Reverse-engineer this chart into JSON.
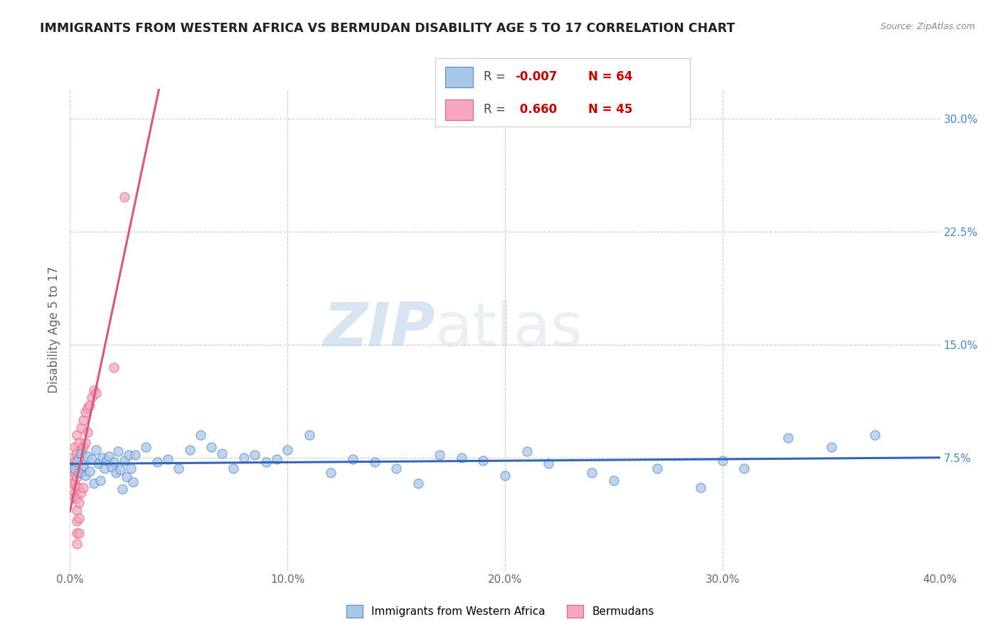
{
  "title": "IMMIGRANTS FROM WESTERN AFRICA VS BERMUDAN DISABILITY AGE 5 TO 17 CORRELATION CHART",
  "source": "Source: ZipAtlas.com",
  "ylabel": "Disability Age 5 to 17",
  "xmin": 0.0,
  "xmax": 0.4,
  "ymin": 0.0,
  "ymax": 0.32,
  "yticks": [
    0.0,
    0.075,
    0.15,
    0.225,
    0.3
  ],
  "ytick_labels": [
    "",
    "7.5%",
    "15.0%",
    "22.5%",
    "30.0%"
  ],
  "xticks": [
    0.0,
    0.1,
    0.2,
    0.3,
    0.4
  ],
  "xtick_labels": [
    "0.0%",
    "10.0%",
    "20.0%",
    "30.0%",
    "40.0%"
  ],
  "watermark_zip": "ZIP",
  "watermark_atlas": "atlas",
  "legend_blue_label": "Immigrants from Western Africa",
  "legend_pink_label": "Bermudans",
  "R_blue": "-0.007",
  "N_blue": "64",
  "R_pink": "0.660",
  "N_pink": "45",
  "blue_fill": "#a8c8e8",
  "blue_edge": "#5588cc",
  "pink_fill": "#f5a8be",
  "pink_edge": "#e06080",
  "blue_line": "#3366bb",
  "pink_line": "#dd5577",
  "grid_color": "#cccccc",
  "bg": "#ffffff",
  "title_color": "#222222",
  "axis_label_color": "#666666",
  "right_tick_color": "#4488cc",
  "blue_scatter": [
    [
      0.002,
      0.068
    ],
    [
      0.003,
      0.072
    ],
    [
      0.004,
      0.065
    ],
    [
      0.005,
      0.078
    ],
    [
      0.006,
      0.07
    ],
    [
      0.007,
      0.063
    ],
    [
      0.008,
      0.076
    ],
    [
      0.009,
      0.066
    ],
    [
      0.01,
      0.074
    ],
    [
      0.011,
      0.058
    ],
    [
      0.012,
      0.08
    ],
    [
      0.013,
      0.071
    ],
    [
      0.014,
      0.06
    ],
    [
      0.015,
      0.075
    ],
    [
      0.016,
      0.068
    ],
    [
      0.017,
      0.073
    ],
    [
      0.018,
      0.076
    ],
    [
      0.019,
      0.069
    ],
    [
      0.02,
      0.072
    ],
    [
      0.021,
      0.065
    ],
    [
      0.022,
      0.079
    ],
    [
      0.023,
      0.067
    ],
    [
      0.024,
      0.054
    ],
    [
      0.025,
      0.073
    ],
    [
      0.026,
      0.062
    ],
    [
      0.027,
      0.077
    ],
    [
      0.028,
      0.068
    ],
    [
      0.029,
      0.059
    ],
    [
      0.03,
      0.077
    ],
    [
      0.035,
      0.082
    ],
    [
      0.04,
      0.072
    ],
    [
      0.045,
      0.074
    ],
    [
      0.05,
      0.068
    ],
    [
      0.055,
      0.08
    ],
    [
      0.06,
      0.09
    ],
    [
      0.065,
      0.082
    ],
    [
      0.07,
      0.078
    ],
    [
      0.075,
      0.068
    ],
    [
      0.08,
      0.075
    ],
    [
      0.085,
      0.077
    ],
    [
      0.09,
      0.072
    ],
    [
      0.095,
      0.074
    ],
    [
      0.1,
      0.08
    ],
    [
      0.11,
      0.09
    ],
    [
      0.12,
      0.065
    ],
    [
      0.13,
      0.074
    ],
    [
      0.14,
      0.072
    ],
    [
      0.15,
      0.068
    ],
    [
      0.16,
      0.058
    ],
    [
      0.17,
      0.077
    ],
    [
      0.18,
      0.075
    ],
    [
      0.19,
      0.073
    ],
    [
      0.2,
      0.063
    ],
    [
      0.21,
      0.079
    ],
    [
      0.22,
      0.071
    ],
    [
      0.24,
      0.065
    ],
    [
      0.25,
      0.06
    ],
    [
      0.27,
      0.068
    ],
    [
      0.29,
      0.055
    ],
    [
      0.3,
      0.073
    ],
    [
      0.31,
      0.068
    ],
    [
      0.33,
      0.088
    ],
    [
      0.35,
      0.082
    ],
    [
      0.37,
      0.09
    ]
  ],
  "pink_scatter": [
    [
      0.001,
      0.075
    ],
    [
      0.001,
      0.068
    ],
    [
      0.001,
      0.062
    ],
    [
      0.001,
      0.058
    ],
    [
      0.002,
      0.082
    ],
    [
      0.002,
      0.072
    ],
    [
      0.002,
      0.065
    ],
    [
      0.002,
      0.058
    ],
    [
      0.002,
      0.052
    ],
    [
      0.002,
      0.048
    ],
    [
      0.003,
      0.09
    ],
    [
      0.003,
      0.078
    ],
    [
      0.003,
      0.07
    ],
    [
      0.003,
      0.062
    ],
    [
      0.003,
      0.055
    ],
    [
      0.003,
      0.048
    ],
    [
      0.003,
      0.04
    ],
    [
      0.003,
      0.033
    ],
    [
      0.003,
      0.025
    ],
    [
      0.003,
      0.018
    ],
    [
      0.004,
      0.085
    ],
    [
      0.004,
      0.075
    ],
    [
      0.004,
      0.065
    ],
    [
      0.004,
      0.055
    ],
    [
      0.004,
      0.045
    ],
    [
      0.004,
      0.035
    ],
    [
      0.004,
      0.025
    ],
    [
      0.005,
      0.095
    ],
    [
      0.005,
      0.08
    ],
    [
      0.005,
      0.065
    ],
    [
      0.005,
      0.052
    ],
    [
      0.006,
      0.1
    ],
    [
      0.006,
      0.082
    ],
    [
      0.006,
      0.068
    ],
    [
      0.006,
      0.055
    ],
    [
      0.007,
      0.105
    ],
    [
      0.007,
      0.085
    ],
    [
      0.008,
      0.108
    ],
    [
      0.008,
      0.092
    ],
    [
      0.009,
      0.11
    ],
    [
      0.01,
      0.115
    ],
    [
      0.011,
      0.12
    ],
    [
      0.012,
      0.118
    ],
    [
      0.02,
      0.135
    ],
    [
      0.025,
      0.248
    ]
  ]
}
